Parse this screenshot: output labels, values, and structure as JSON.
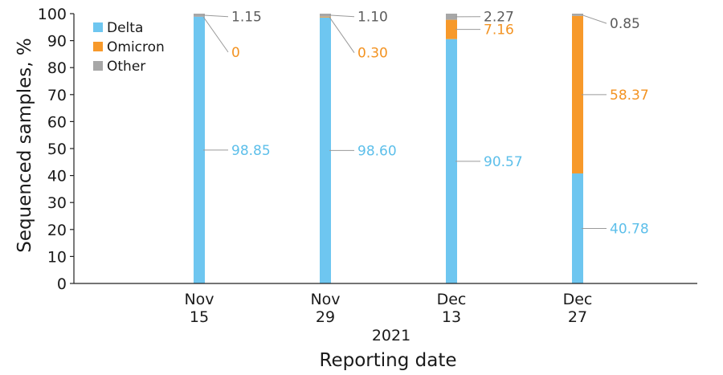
{
  "chart_data": {
    "type": "bar",
    "stacked": true,
    "categories": [
      [
        "Nov",
        "15"
      ],
      [
        "Nov",
        "29"
      ],
      [
        "Dec",
        "13"
      ],
      [
        "Dec",
        "27"
      ]
    ],
    "year_label": "2021",
    "xlabel": "Reporting date",
    "ylabel": "Sequenced samples, %",
    "ylim": [
      0,
      100
    ],
    "yticks": [
      0,
      10,
      20,
      30,
      40,
      50,
      60,
      70,
      80,
      90,
      100
    ],
    "grid": false,
    "legend_position": "top-left",
    "series": [
      {
        "name": "Delta",
        "color": "#6EC6F0",
        "label_color": "#5DBFEA",
        "values": [
          98.85,
          98.6,
          90.57,
          40.78
        ],
        "labels": [
          "98.85",
          "98.60",
          "90.57",
          "40.78"
        ]
      },
      {
        "name": "Omicron",
        "color": "#F7992A",
        "label_color": "#F39322",
        "values": [
          0,
          0.3,
          7.16,
          58.37
        ],
        "labels": [
          "0",
          "0.30",
          "7.16",
          "58.37"
        ]
      },
      {
        "name": "Other",
        "color": "#A7A7A7",
        "label_color": "#5B5B5B",
        "values": [
          1.15,
          1.1,
          2.27,
          0.85
        ],
        "labels": [
          "1.15",
          "1.10",
          "2.27",
          "0.85"
        ]
      }
    ]
  }
}
